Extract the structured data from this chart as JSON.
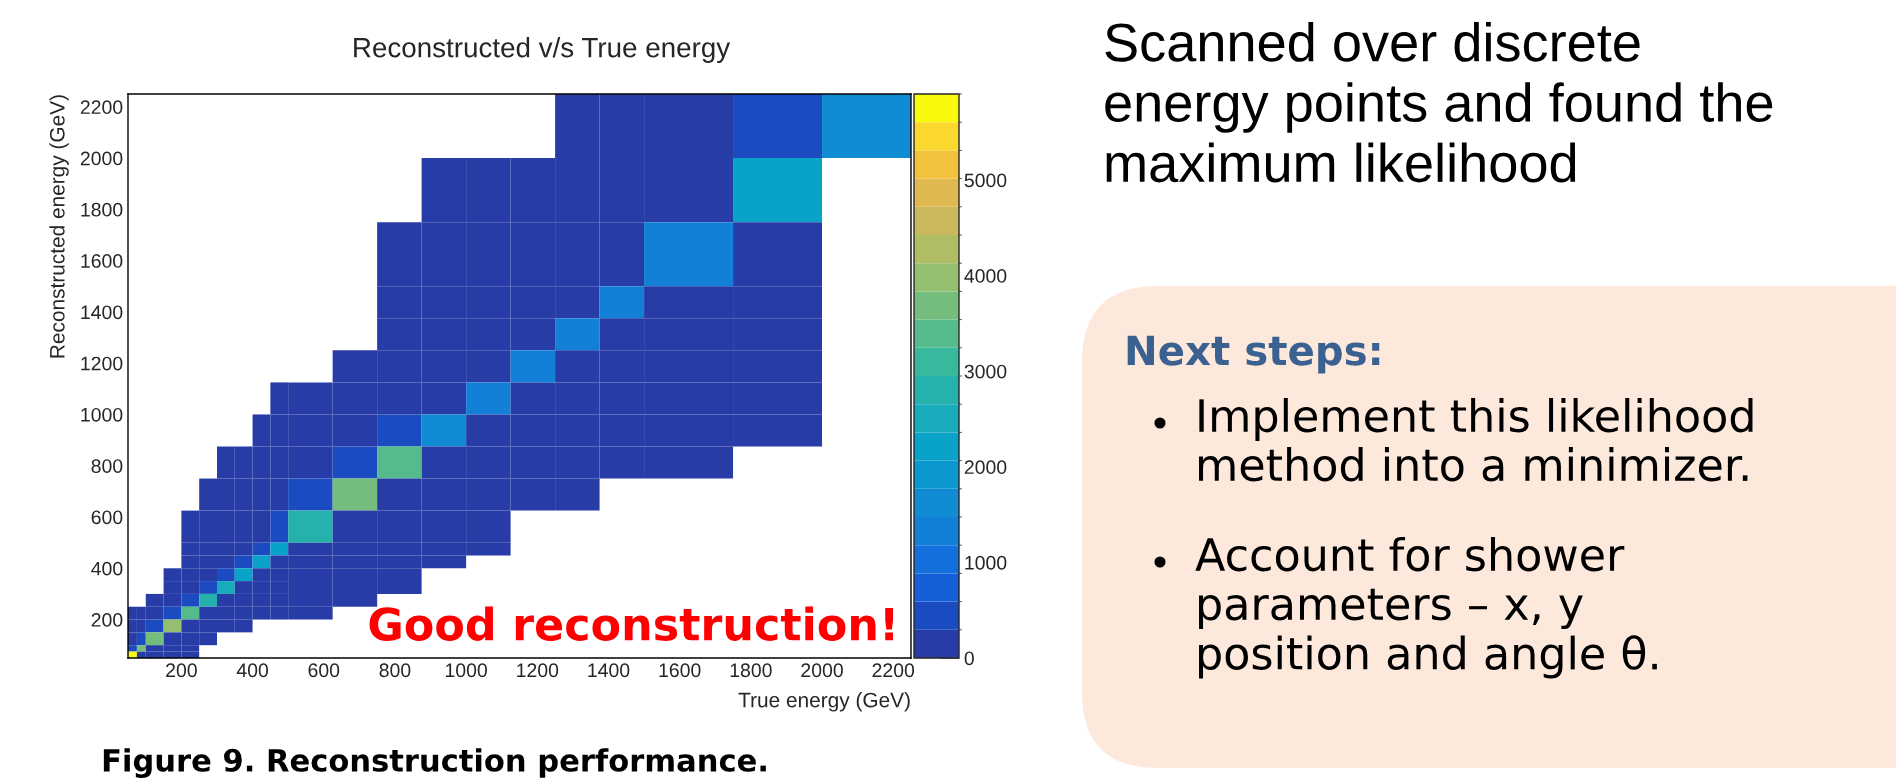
{
  "chart_data": {
    "type": "heatmap",
    "title": "Reconstructed v/s True energy",
    "xlabel": "True energy (GeV)",
    "ylabel": "Reconstructed energy (GeV)",
    "x": [
      62.5,
      87.5,
      125,
      175,
      225,
      275,
      325,
      375,
      425,
      475,
      562.5,
      687.5,
      812.5,
      937.5,
      1062.5,
      1187.5,
      1312.5,
      1437.5,
      1625,
      1875,
      2125
    ],
    "y": [
      2125,
      1875,
      1625,
      1437.5,
      1312.5,
      1187.5,
      1062.5,
      937.5,
      812.5,
      687.5,
      562.5,
      475,
      425,
      375,
      325,
      275,
      225,
      175,
      125,
      87.5,
      62.5
    ],
    "cells": [
      [
        null,
        null,
        null,
        null,
        null,
        null,
        null,
        null,
        null,
        null,
        null,
        null,
        null,
        null,
        null,
        null,
        150,
        150,
        150,
        450,
        1600
      ],
      [
        null,
        null,
        null,
        null,
        null,
        null,
        null,
        null,
        null,
        null,
        null,
        null,
        null,
        150,
        150,
        150,
        150,
        150,
        150,
        2100,
        null
      ],
      [
        null,
        null,
        null,
        null,
        null,
        null,
        null,
        null,
        null,
        null,
        null,
        null,
        150,
        150,
        150,
        150,
        150,
        150,
        1300,
        150,
        null
      ],
      [
        null,
        null,
        null,
        null,
        null,
        null,
        null,
        null,
        null,
        null,
        null,
        null,
        150,
        150,
        150,
        150,
        150,
        1300,
        150,
        150,
        null
      ],
      [
        null,
        null,
        null,
        null,
        null,
        null,
        null,
        null,
        null,
        null,
        null,
        null,
        150,
        150,
        150,
        150,
        1300,
        150,
        150,
        150,
        null
      ],
      [
        null,
        null,
        null,
        null,
        null,
        null,
        null,
        null,
        null,
        null,
        null,
        150,
        150,
        150,
        150,
        1300,
        150,
        150,
        150,
        150,
        null
      ],
      [
        null,
        null,
        null,
        null,
        null,
        null,
        null,
        null,
        null,
        150,
        150,
        150,
        150,
        150,
        1300,
        150,
        150,
        150,
        150,
        150,
        null
      ],
      [
        null,
        null,
        null,
        null,
        null,
        null,
        null,
        null,
        150,
        150,
        150,
        150,
        450,
        1600,
        150,
        150,
        150,
        150,
        150,
        150,
        null
      ],
      [
        null,
        null,
        null,
        null,
        null,
        null,
        150,
        150,
        150,
        150,
        150,
        450,
        3400,
        150,
        150,
        150,
        150,
        150,
        150,
        null,
        null
      ],
      [
        null,
        null,
        null,
        null,
        null,
        150,
        150,
        150,
        150,
        150,
        450,
        3700,
        150,
        150,
        150,
        150,
        150,
        null,
        null,
        null,
        null
      ],
      [
        null,
        null,
        null,
        null,
        150,
        150,
        150,
        150,
        150,
        450,
        2800,
        150,
        150,
        150,
        150,
        null,
        null,
        null,
        null,
        null,
        null
      ],
      [
        null,
        null,
        null,
        null,
        150,
        150,
        150,
        150,
        450,
        2200,
        150,
        150,
        150,
        150,
        150,
        null,
        null,
        null,
        null,
        null,
        null
      ],
      [
        null,
        null,
        null,
        null,
        150,
        150,
        150,
        450,
        2200,
        150,
        150,
        150,
        150,
        150,
        null,
        null,
        null,
        null,
        null,
        null,
        null
      ],
      [
        null,
        null,
        null,
        150,
        150,
        150,
        450,
        2250,
        150,
        150,
        150,
        150,
        150,
        null,
        null,
        null,
        null,
        null,
        null,
        null,
        null
      ],
      [
        null,
        null,
        null,
        150,
        150,
        450,
        2500,
        150,
        150,
        150,
        150,
        150,
        150,
        null,
        null,
        null,
        null,
        null,
        null,
        null,
        null
      ],
      [
        null,
        null,
        150,
        150,
        450,
        2800,
        150,
        150,
        150,
        150,
        150,
        150,
        null,
        null,
        null,
        null,
        null,
        null,
        null,
        null,
        null
      ],
      [
        150,
        150,
        150,
        450,
        3400,
        150,
        150,
        150,
        150,
        150,
        150,
        null,
        null,
        null,
        null,
        null,
        null,
        null,
        null,
        null,
        null
      ],
      [
        150,
        150,
        450,
        4000,
        150,
        150,
        150,
        150,
        null,
        null,
        null,
        null,
        null,
        null,
        null,
        null,
        null,
        null,
        null,
        null,
        null
      ],
      [
        150,
        450,
        3700,
        150,
        150,
        150,
        null,
        null,
        null,
        null,
        null,
        null,
        null,
        null,
        null,
        null,
        null,
        null,
        null,
        null,
        null
      ],
      [
        450,
        3700,
        150,
        150,
        150,
        null,
        null,
        null,
        null,
        null,
        null,
        null,
        null,
        null,
        null,
        null,
        null,
        null,
        null,
        null,
        null
      ],
      [
        5800,
        150,
        150,
        150,
        150,
        null,
        null,
        null,
        null,
        null,
        null,
        null,
        null,
        null,
        null,
        null,
        null,
        null,
        null,
        null,
        null
      ]
    ],
    "colors": [
      "#283ca8",
      "#1a4bc0",
      "#1560d8",
      "#136fdc",
      "#1380d8",
      "#118bd3",
      "#0b97cf",
      "#09a2c9",
      "#17abbb",
      "#25b2ad",
      "#38b89c",
      "#55bb8c",
      "#75bd7c",
      "#95bf70",
      "#b0bd64",
      "#c9b95c",
      "#e0b850",
      "#f3c23d",
      "#fad82e",
      "#f9f90e"
    ],
    "clim": [
      0,
      5900
    ],
    "cticks": [
      0,
      1000,
      2000,
      3000,
      4000,
      5000
    ],
    "xlim": [
      50,
      2250
    ],
    "ylim": [
      50,
      2250
    ],
    "xticks": [
      200,
      400,
      600,
      800,
      1000,
      1200,
      1400,
      1600,
      1800,
      2000,
      2200
    ],
    "yticks": [
      200,
      400,
      600,
      800,
      1000,
      1200,
      1400,
      1600,
      1800,
      2000,
      2200
    ],
    "annotations": [
      "Scanned over discrete\nenergy points and found the\nmaximum likelihood",
      "Next steps:",
      "Implement this likelihood\nmethod into a minimizer.",
      "Account for shower\nparameters – x, y\nposition and angle θ.",
      "Good reconstruction!",
      "Figure 9. Reconstruction performance."
    ]
  }
}
